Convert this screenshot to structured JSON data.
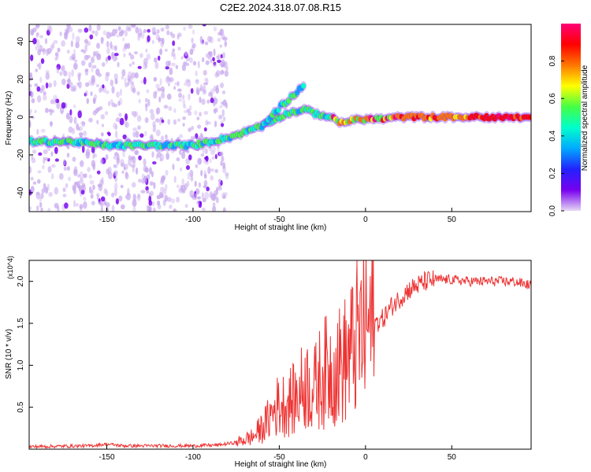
{
  "title": "C2E2.2024.318.07.08.R15",
  "chart_data": [
    {
      "type": "heatmap",
      "xlabel": "Height of straight line (km)",
      "ylabel": "Frequency (Hz)",
      "xlim": [
        -195,
        96
      ],
      "ylim": [
        -50,
        49
      ],
      "xticks": [
        -150,
        -100,
        -50,
        0,
        50
      ],
      "yticks": [
        -40,
        -20,
        0,
        20,
        40
      ],
      "colorbar": {
        "label": "Normalized spectral amplitude",
        "range": [
          0,
          1
        ],
        "ticks": [
          0.0,
          0.2,
          0.4,
          0.6,
          0.8
        ],
        "colormap": [
          "#e6d8f5",
          "#7700ee",
          "#2222ff",
          "#00aaff",
          "#00ffcc",
          "#44ff44",
          "#ffff00",
          "#ff7700",
          "#ff0000",
          "#ff0077"
        ]
      },
      "ridge": {
        "x": [
          -195,
          -170,
          -150,
          -130,
          -110,
          -100,
          -95,
          -90,
          -80,
          -70,
          -60,
          -50,
          -45,
          -40,
          -35,
          -30,
          -25,
          -20,
          -15,
          -10,
          0,
          10,
          20,
          40,
          60,
          80,
          95
        ],
        "y": [
          -13,
          -13,
          -15,
          -15,
          -15,
          -15,
          -14,
          -13,
          -11,
          -8,
          -4,
          0,
          2,
          3,
          4,
          2,
          1,
          0,
          -3,
          -2,
          -1,
          -1,
          0,
          0,
          0,
          0,
          0
        ]
      },
      "secondary_branch": {
        "x": [
          -60,
          -55,
          -50,
          -45,
          -40,
          -35
        ],
        "y": [
          -5,
          0,
          5,
          9,
          13,
          18
        ]
      }
    },
    {
      "type": "line",
      "xlabel": "Height of straight line (km)",
      "ylabel": "SNR (10 * v/v)",
      "y_multiplier": "(x10^4)",
      "xlim": [
        -195,
        96
      ],
      "ylim": [
        0,
        2.25
      ],
      "xticks": [
        -150,
        -100,
        -50,
        0,
        50
      ],
      "yticks": [
        0.5,
        1.0,
        1.5,
        2.0
      ],
      "line_color": "#ee3333",
      "series": [
        {
          "x": [
            -195,
            -160,
            -150,
            -140,
            -100,
            -85,
            -75,
            -65,
            -58,
            -52,
            -46,
            -40,
            -35,
            -30,
            -25,
            -20,
            -15,
            -10,
            -5,
            0,
            5,
            10,
            15,
            20,
            25,
            30,
            35,
            40,
            50,
            60,
            70,
            80,
            85,
            90,
            96
          ],
          "values": [
            0.03,
            0.04,
            0.06,
            0.04,
            0.04,
            0.05,
            0.08,
            0.15,
            0.3,
            0.5,
            0.55,
            0.6,
            0.8,
            0.7,
            0.9,
            0.95,
            1.0,
            1.1,
            1.3,
            1.45,
            1.5,
            1.55,
            1.7,
            1.8,
            1.9,
            1.95,
            2.0,
            2.02,
            2.02,
            2.0,
            2.0,
            2.0,
            2.0,
            1.98,
            1.95
          ]
        }
      ]
    }
  ]
}
